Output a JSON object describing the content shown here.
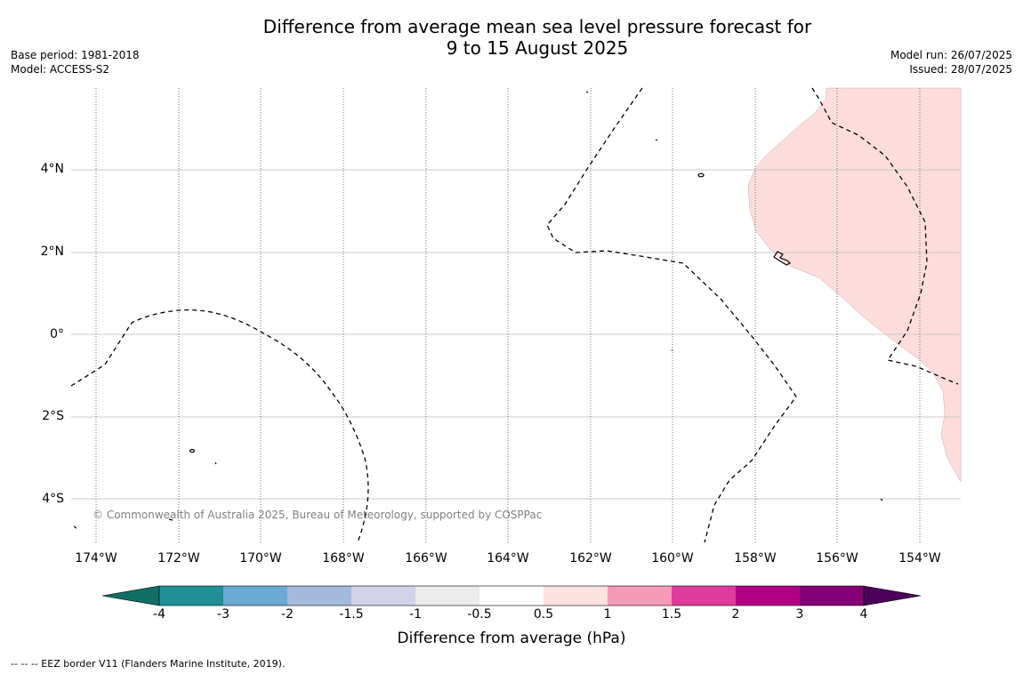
{
  "title_line1": "Difference from average mean sea level pressure forecast for",
  "title_line2": "9 to 15 August 2025",
  "meta_left": {
    "base_period": "Base period: 1981-2018",
    "model": "Model: ACCESS-S2"
  },
  "meta_right": {
    "model_run": "Model run: 26/07/2025",
    "issued": "Issued: 28/07/2025"
  },
  "map": {
    "lat_labels": [
      "4°N",
      "2°N",
      "0°",
      "2°S",
      "4°S"
    ],
    "lon_labels": [
      "174°W",
      "172°W",
      "170°W",
      "168°W",
      "166°W",
      "164°W",
      "162°W",
      "160°W",
      "158°W",
      "156°W",
      "154°W"
    ],
    "copyright": "© Commonwealth of Australia 2025, Bureau of Meteorology, supported by COSPPac",
    "anomaly_fill_color": "#fddcdc",
    "eez_border_style": "dashed"
  },
  "colorbar": {
    "title": "Difference from average (hPa)",
    "labels": [
      "-4",
      "-3",
      "-2",
      "-1.5",
      "-1",
      "-0.5",
      "0.5",
      "1",
      "1.5",
      "2",
      "3",
      "4"
    ],
    "colors": [
      "#0f6e66",
      "#1e9096",
      "#6aaad4",
      "#a4b9dc",
      "#d2d2e8",
      "#ececec",
      "#ffffff",
      "#fde0e0",
      "#f59ab6",
      "#dd3c9c",
      "#b00083",
      "#850076",
      "#4b005a"
    ]
  },
  "footnote": "--  --  -- EEZ border V11 (Flanders Marine Institute, 2019)."
}
